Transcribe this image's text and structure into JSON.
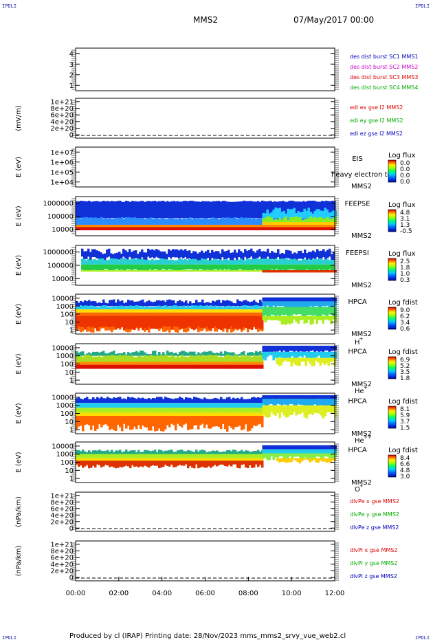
{
  "corner_label": "IPDLI",
  "header": {
    "spacecraft": "MMS2",
    "date": "07/May/2017 00:00"
  },
  "footer": "Produced by cl (IRAP)   Printing date: 28/Nov/2023   mms_mms2_srvy_vue_web2.cl",
  "chart_data": [
    {
      "type": "line",
      "title": "burst",
      "yticks": [
        "4",
        "3",
        "2",
        "1"
      ],
      "ylim": [
        0.6,
        4.4
      ],
      "legend": [
        {
          "text": "des dist burst SC1 MMS1",
          "color": "#0000bb"
        },
        {
          "text": "des dist burst SC2 MMS2",
          "color": "#cc00cc"
        },
        {
          "text": "des dist burst SC3 MMS3",
          "color": "#dd0000"
        },
        {
          "text": "des dist burst SC4 MMS4",
          "color": "#00aa00"
        }
      ],
      "series": []
    },
    {
      "type": "line",
      "title": "edi",
      "ylabel": "(mV/m)",
      "yticks": [
        "1e+21",
        "8e+20",
        "6e+20",
        "4e+20",
        "2e+20",
        "0"
      ],
      "ylim": [
        0,
        1e+21
      ],
      "zero_line": true,
      "legend": [
        {
          "text": "edi ex gse l2 MMS2",
          "color": "#dd0000"
        },
        {
          "text": "edi ey gse l2 MMS2",
          "color": "#00aa00"
        },
        {
          "text": "edi ez gse l2 MMS2",
          "color": "#0000bb"
        }
      ],
      "series": []
    },
    {
      "type": "heatmap",
      "title": "EIS",
      "ylabel": "E (eV)",
      "yticks": [
        "1e+07",
        "1e+06",
        "1e+05",
        "1e+04"
      ],
      "ylim": [
        10000,
        10000000
      ],
      "labels": [
        "EIS",
        "MMS2"
      ],
      "overlay_text": "heavy electron to",
      "colorbar": {
        "title": "Log flux",
        "ticks": [
          "0.0",
          "0.0",
          "0.0",
          "0.0"
        ]
      }
    },
    {
      "type": "heatmap",
      "title": "FEEPSE",
      "ylabel": "E (eV)",
      "yticks": [
        "1000000",
        "100000",
        "10000"
      ],
      "ylim": [
        10000,
        1000000
      ],
      "labels": [
        "FEEPSE",
        "MMS2"
      ],
      "colorbar": {
        "title": "Log flux",
        "ticks": [
          "4.8",
          "3.1",
          "1.3",
          "-0.5"
        ]
      }
    },
    {
      "type": "heatmap",
      "title": "FEEPSI",
      "ylabel": "E (eV)",
      "yticks": [
        "1000000",
        "100000",
        "10000"
      ],
      "ylim": [
        10000,
        1000000
      ],
      "labels": [
        "FEEPSI",
        "MMS2"
      ],
      "colorbar": {
        "title": "Log flux",
        "ticks": [
          "2.5",
          "1.8",
          "1.0",
          "0.3"
        ]
      }
    },
    {
      "type": "heatmap",
      "title": "HPCA H+",
      "ylabel": "E (eV)",
      "yticks": [
        "10000",
        "1000",
        "100",
        "10",
        "1"
      ],
      "ylim": [
        1,
        30000
      ],
      "labels": [
        "HPCA",
        "MMS2"
      ],
      "species": "H",
      "species_sup": "+",
      "colorbar": {
        "title": "Log fdist",
        "ticks": [
          "9.0",
          "6.2",
          "3.4",
          "0.6"
        ]
      }
    },
    {
      "type": "heatmap",
      "title": "HPCA He+",
      "ylabel": "E (eV)",
      "yticks": [
        "10000",
        "1000",
        "100",
        "10",
        "1"
      ],
      "ylim": [
        1,
        30000
      ],
      "labels": [
        "HPCA",
        "MMS2"
      ],
      "species": "He",
      "species_sup": "+",
      "colorbar": {
        "title": "Log fdist",
        "ticks": [
          "6.9",
          "5.2",
          "3.5",
          "1.8"
        ]
      }
    },
    {
      "type": "heatmap",
      "title": "HPCA He++",
      "ylabel": "E (eV)",
      "yticks": [
        "10000",
        "1000",
        "100",
        "10",
        "1"
      ],
      "ylim": [
        1,
        30000
      ],
      "labels": [
        "HPCA",
        "MMS2"
      ],
      "species": "He",
      "species_sup": "++",
      "colorbar": {
        "title": "Log fdist",
        "ticks": [
          "8.1",
          "5.9",
          "3.7",
          "1.5"
        ]
      }
    },
    {
      "type": "heatmap",
      "title": "HPCA O+",
      "ylabel": "E (eV)",
      "yticks": [
        "10000",
        "1000",
        "100",
        "10",
        "1"
      ],
      "ylim": [
        1,
        30000
      ],
      "labels": [
        "HPCA",
        "MMS2"
      ],
      "species": "O",
      "species_sup": "+",
      "colorbar": {
        "title": "Log fdist",
        "ticks": [
          "8.4",
          "6.6",
          "4.8",
          "3.0"
        ]
      }
    },
    {
      "type": "line",
      "title": "dlvPe",
      "ylabel": "(nPa/km)",
      "yticks": [
        "1e+21",
        "8e+20",
        "6e+20",
        "4e+20",
        "2e+20",
        "0"
      ],
      "ylim": [
        0,
        1e+21
      ],
      "zero_line": true,
      "legend": [
        {
          "text": "dlvPe x gse MMS2",
          "color": "#dd0000"
        },
        {
          "text": "dlvPe y gse MMS2",
          "color": "#00aa00"
        },
        {
          "text": "dlvPe z gse MMS2",
          "color": "#0000bb"
        }
      ],
      "series": []
    },
    {
      "type": "line",
      "title": "dlvPi",
      "ylabel": "(nPa/km)",
      "yticks": [
        "1e+21",
        "8e+20",
        "6e+20",
        "4e+20",
        "2e+20",
        "0"
      ],
      "ylim": [
        0,
        1e+21
      ],
      "zero_line": true,
      "legend": [
        {
          "text": "dlvPi x gse MMS2",
          "color": "#dd0000"
        },
        {
          "text": "dlvPi y gse MMS2",
          "color": "#00aa00"
        },
        {
          "text": "dlvPi z gse MMS2",
          "color": "#0000bb"
        }
      ],
      "series": []
    }
  ],
  "xaxis": {
    "ticks": [
      "00:00",
      "02:00",
      "04:00",
      "06:00",
      "08:00",
      "10:00",
      "12:00"
    ]
  }
}
